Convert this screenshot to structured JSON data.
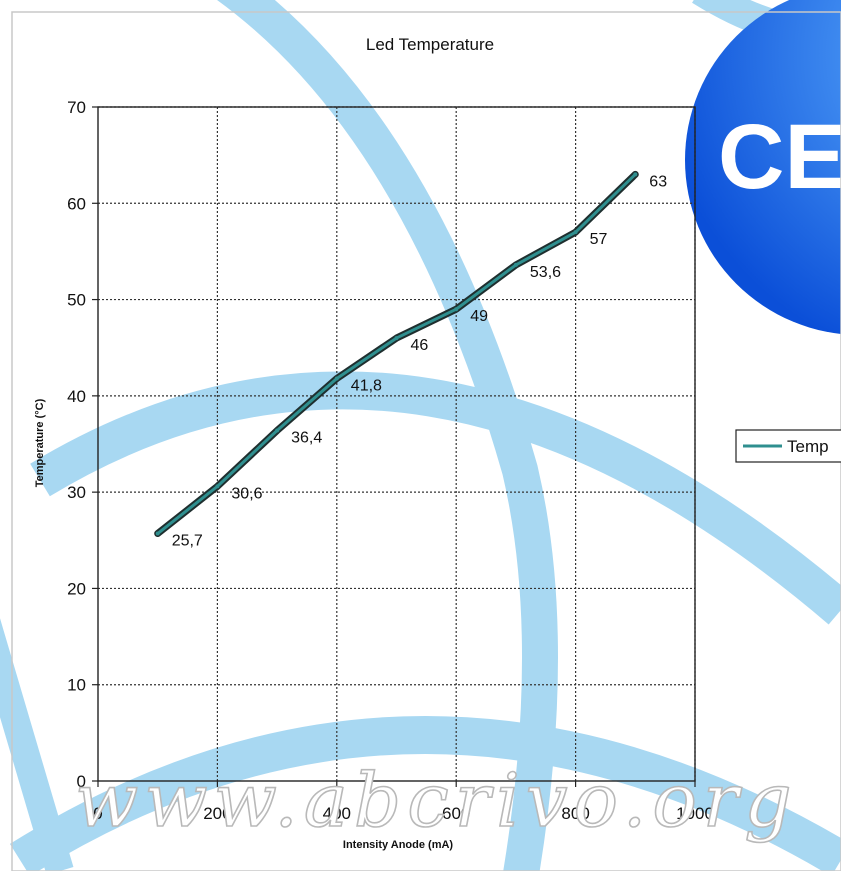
{
  "chart_data": {
    "type": "line",
    "title": "Led Temperature",
    "xlabel": "Intensity Anode (mA)",
    "ylabel": "Temperature (°C)",
    "xlim": [
      0,
      1000
    ],
    "ylim": [
      0,
      70
    ],
    "xticks": [
      "0",
      "200",
      "400",
      "600",
      "800",
      "1000"
    ],
    "yticks": [
      "0",
      "10",
      "20",
      "30",
      "40",
      "50",
      "60",
      "70"
    ],
    "grid": true,
    "legend_position": "right",
    "series": [
      {
        "name": "Temp",
        "color": "#2f8f8f",
        "points": [
          {
            "x": 100,
            "y": 25.7,
            "label": "25,7"
          },
          {
            "x": 200,
            "y": 30.6,
            "label": "30,6"
          },
          {
            "x": 300,
            "y": 36.4,
            "label": "36,4"
          },
          {
            "x": 400,
            "y": 41.8,
            "label": "41,8"
          },
          {
            "x": 500,
            "y": 46,
            "label": "46"
          },
          {
            "x": 600,
            "y": 49,
            "label": "49"
          },
          {
            "x": 700,
            "y": 53.6,
            "label": "53,6"
          },
          {
            "x": 800,
            "y": 57,
            "label": "57"
          },
          {
            "x": 900,
            "y": 63,
            "label": "63"
          }
        ]
      }
    ]
  },
  "watermark": {
    "text": "www.abcrivo.org",
    "logo_text": "CE",
    "arc_color": "#a8d8f2",
    "globe_color": "#1f6fe8"
  }
}
